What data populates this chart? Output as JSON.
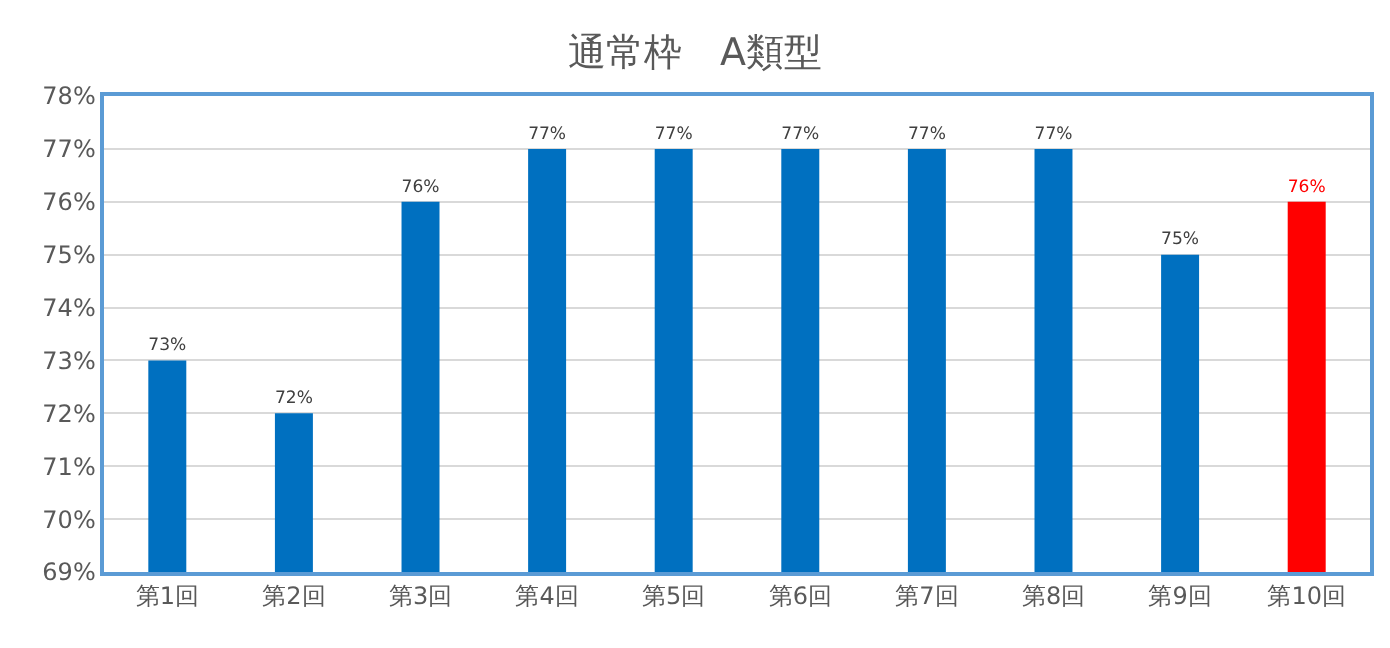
{
  "chart_data": {
    "type": "bar",
    "title": "通常枠　A類型",
    "categories": [
      "第1回",
      "第2回",
      "第3回",
      "第4回",
      "第5回",
      "第6回",
      "第7回",
      "第8回",
      "第9回",
      "第10回"
    ],
    "values": [
      73,
      72,
      76,
      77,
      77,
      77,
      77,
      77,
      75,
      76
    ],
    "colors": [
      "#0070c0",
      "#0070c0",
      "#0070c0",
      "#0070c0",
      "#0070c0",
      "#0070c0",
      "#0070c0",
      "#0070c0",
      "#0070c0",
      "#ff0000"
    ],
    "value_labels": [
      "73%",
      "72%",
      "76%",
      "77%",
      "77%",
      "77%",
      "77%",
      "77%",
      "75%",
      "76%"
    ],
    "ylim": [
      69,
      78
    ],
    "yticks": [
      {
        "value": 69,
        "label": "69%"
      },
      {
        "value": 70,
        "label": "70%"
      },
      {
        "value": 71,
        "label": "71%"
      },
      {
        "value": 72,
        "label": "72%"
      },
      {
        "value": 73,
        "label": "73%"
      },
      {
        "value": 74,
        "label": "74%"
      },
      {
        "value": 75,
        "label": "75%"
      },
      {
        "value": 76,
        "label": "76%"
      },
      {
        "value": 77,
        "label": "77%"
      },
      {
        "value": 78,
        "label": "78%"
      }
    ],
    "grid": "y"
  }
}
